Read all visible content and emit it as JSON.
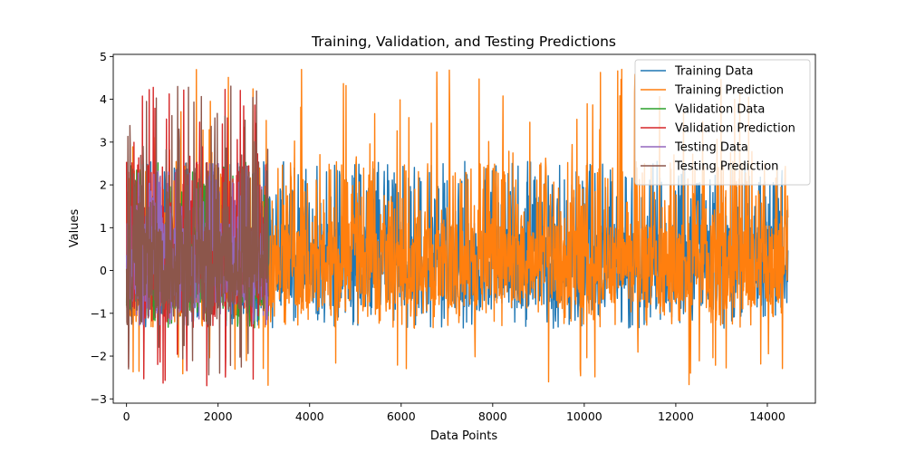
{
  "chart_data": {
    "type": "line",
    "title": "Training, Validation, and Testing Predictions",
    "xlabel": "Data Points",
    "ylabel": "Values",
    "xlim": [
      -290,
      15050
    ],
    "ylim": [
      -3.1,
      5.05
    ],
    "xticks": [
      0,
      2000,
      4000,
      6000,
      8000,
      10000,
      12000,
      14000
    ],
    "xtick_labels": [
      "0",
      "2000",
      "4000",
      "6000",
      "8000",
      "10000",
      "12000",
      "14000"
    ],
    "yticks": [
      -3,
      -2,
      -1,
      0,
      1,
      2,
      3,
      4,
      5
    ],
    "ytick_labels": [
      "−3",
      "−2",
      "−1",
      "0",
      "1",
      "2",
      "3",
      "4",
      "5"
    ],
    "grid": false,
    "legend_position": "top-right",
    "series": [
      {
        "name": "Training Data",
        "color": "#1f77b4",
        "x_range": [
          0,
          14450
        ],
        "y_min": -1.4,
        "y_max": 2.55,
        "points": 1800,
        "seed": 11,
        "spike_rate": 0.0,
        "clip_top": 2.55
      },
      {
        "name": "Training Prediction",
        "color": "#ff7f0e",
        "x_range": [
          0,
          14450
        ],
        "y_min": -2.7,
        "y_max": 4.7,
        "points": 1800,
        "seed": 23,
        "spike_rate": 0.05
      },
      {
        "name": "Validation Data",
        "color": "#2ca02c",
        "x_range": [
          0,
          3100
        ],
        "y_min": -1.4,
        "y_max": 2.55,
        "points": 420,
        "seed": 37,
        "spike_rate": 0.0,
        "clip_top": 2.55
      },
      {
        "name": "Validation Prediction",
        "color": "#d62728",
        "x_range": [
          0,
          3100
        ],
        "y_min": -2.75,
        "y_max": 4.4,
        "points": 420,
        "seed": 41,
        "spike_rate": 0.09
      },
      {
        "name": "Testing Data",
        "color": "#9467bd",
        "x_range": [
          0,
          3100
        ],
        "y_min": -1.4,
        "y_max": 2.55,
        "points": 420,
        "seed": 53,
        "spike_rate": 0.0,
        "clip_top": 2.55
      },
      {
        "name": "Testing Prediction",
        "color": "#8c564b",
        "x_range": [
          0,
          3100
        ],
        "y_min": -2.5,
        "y_max": 4.35,
        "points": 420,
        "seed": 67,
        "spike_rate": 0.07
      }
    ]
  }
}
